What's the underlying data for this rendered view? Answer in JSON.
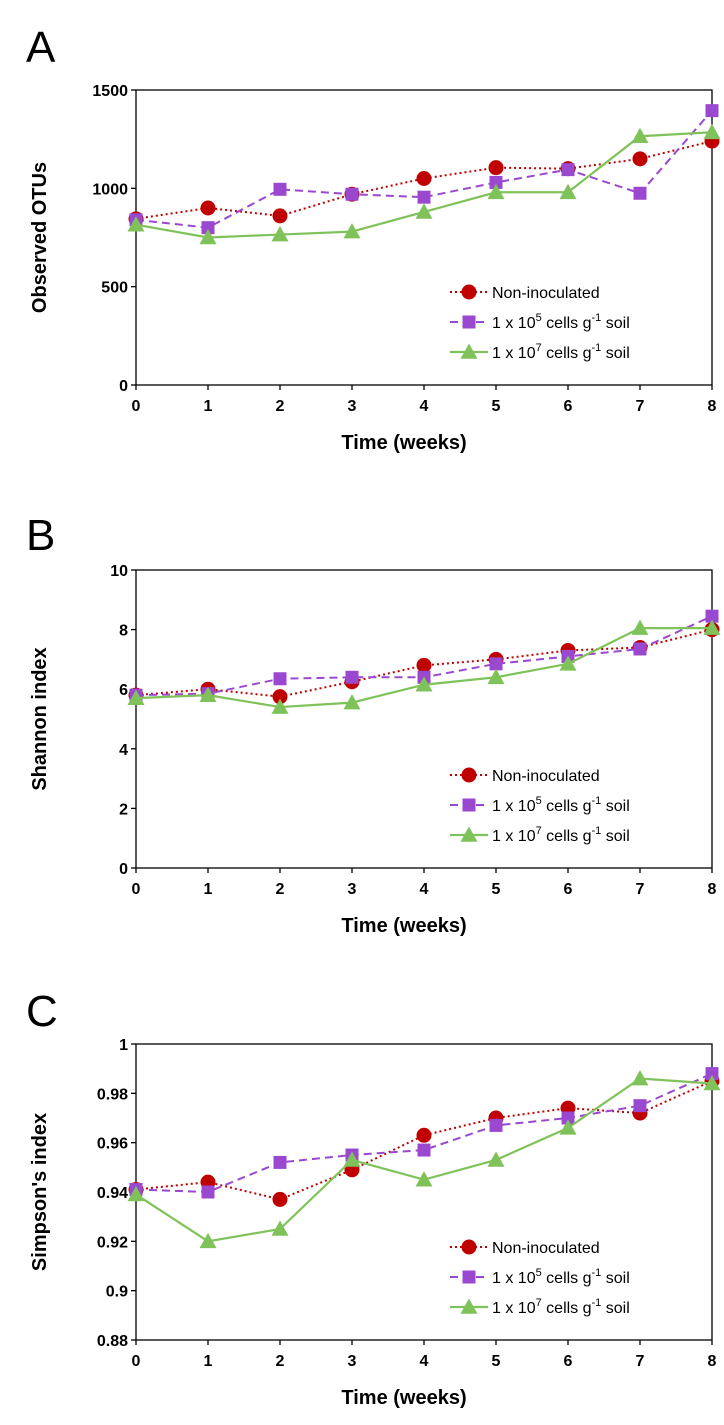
{
  "chart_data": [
    {
      "panel": "A",
      "type": "line",
      "title": "",
      "xlabel": "Time (weeks)",
      "ylabel": "Observed OTUs",
      "x": [
        0,
        1,
        2,
        3,
        4,
        5,
        6,
        7,
        8
      ],
      "xlim": [
        0,
        8
      ],
      "ylim": [
        0,
        1500
      ],
      "yticks": [
        0,
        500,
        1000,
        1500
      ],
      "ytick_labels": [
        "0",
        "500",
        "1000",
        "1500"
      ],
      "grid": false,
      "legend_position": "bottom-right",
      "series": [
        {
          "name": "Non-inoculated",
          "values": [
            845,
            900,
            860,
            970,
            1050,
            1105,
            1100,
            1150,
            1240
          ]
        },
        {
          "name": "1 x 10^5 cells g^-1 soil",
          "values": [
            840,
            800,
            995,
            970,
            955,
            1030,
            1095,
            975,
            1395
          ]
        },
        {
          "name": "1 x 10^7 cells g^-1 soil",
          "values": [
            815,
            750,
            765,
            780,
            880,
            980,
            980,
            1265,
            1285
          ]
        }
      ]
    },
    {
      "panel": "B",
      "type": "line",
      "title": "",
      "xlabel": "Time (weeks)",
      "ylabel": "Shannon index",
      "x": [
        0,
        1,
        2,
        3,
        4,
        5,
        6,
        7,
        8
      ],
      "xlim": [
        0,
        8
      ],
      "ylim": [
        0,
        10
      ],
      "yticks": [
        0,
        2,
        4,
        6,
        8,
        10
      ],
      "ytick_labels": [
        "0",
        "2",
        "4",
        "6",
        "8",
        "10"
      ],
      "grid": false,
      "legend_position": "bottom-right",
      "series": [
        {
          "name": "Non-inoculated",
          "values": [
            5.8,
            6.0,
            5.75,
            6.25,
            6.8,
            7.0,
            7.3,
            7.4,
            8.0
          ]
        },
        {
          "name": "1 x 10^5 cells g^-1 soil",
          "values": [
            5.8,
            5.85,
            6.35,
            6.4,
            6.4,
            6.85,
            7.1,
            7.35,
            8.45
          ]
        },
        {
          "name": "1 x 10^7 cells g^-1 soil",
          "values": [
            5.7,
            5.8,
            5.4,
            5.55,
            6.15,
            6.4,
            6.85,
            8.05,
            8.05
          ]
        }
      ]
    },
    {
      "panel": "C",
      "type": "line",
      "title": "",
      "xlabel": "Time (weeks)",
      "ylabel": "Simpson's index",
      "x": [
        0,
        1,
        2,
        3,
        4,
        5,
        6,
        7,
        8
      ],
      "xlim": [
        0,
        8
      ],
      "ylim": [
        0.88,
        1.0
      ],
      "yticks": [
        0.88,
        0.9,
        0.92,
        0.94,
        0.96,
        0.98,
        1.0
      ],
      "ytick_labels": [
        "0.88",
        "0.9",
        "0.92",
        "0.94",
        "0.96",
        "0.98",
        "1"
      ],
      "grid": false,
      "legend_position": "bottom-right",
      "series": [
        {
          "name": "Non-inoculated",
          "values": [
            0.941,
            0.944,
            0.937,
            0.949,
            0.963,
            0.97,
            0.974,
            0.972,
            0.985
          ]
        },
        {
          "name": "1 x 10^5 cells g^-1 soil",
          "values": [
            0.941,
            0.94,
            0.952,
            0.955,
            0.957,
            0.967,
            0.97,
            0.975,
            0.988
          ]
        },
        {
          "name": "1 x 10^7 cells g^-1 soil",
          "values": [
            0.939,
            0.92,
            0.925,
            0.953,
            0.945,
            0.953,
            0.966,
            0.986,
            0.984
          ]
        }
      ]
    }
  ],
  "x_tick_labels": [
    "0",
    "1",
    "2",
    "3",
    "4",
    "5",
    "6",
    "7",
    "8"
  ],
  "legend": {
    "non_inoculated": "Non-inoculated",
    "e5_prefix": "1 x 10",
    "e5_exp": "5",
    "e7_prefix": "1 x 10",
    "e7_exp": "7",
    "cells_g": " cells g",
    "minus_one": "-1",
    "soil": "  soil"
  },
  "colors": {
    "non_inoculated": "#c00000",
    "e5": "#9a48d0",
    "e7": "#7fc25a",
    "axis": "#000000"
  }
}
